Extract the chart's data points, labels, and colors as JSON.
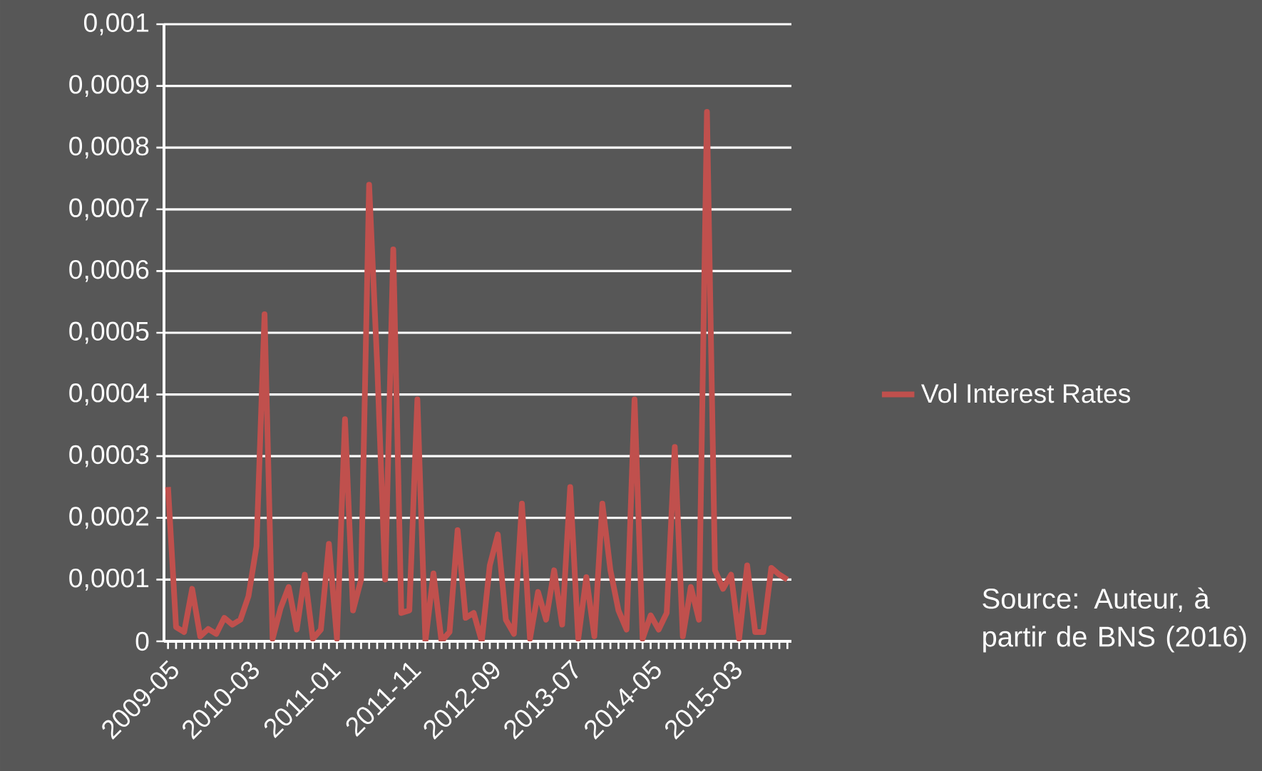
{
  "chart_data": {
    "type": "line",
    "categories": [
      "2009-05",
      null,
      null,
      null,
      null,
      null,
      null,
      null,
      null,
      null,
      "2010-03",
      null,
      null,
      null,
      null,
      null,
      null,
      null,
      null,
      null,
      "2011-01",
      null,
      null,
      null,
      null,
      null,
      null,
      null,
      null,
      null,
      "2011-11",
      null,
      null,
      null,
      null,
      null,
      null,
      null,
      null,
      null,
      "2012-09",
      null,
      null,
      null,
      null,
      null,
      null,
      null,
      null,
      null,
      "2013-07",
      null,
      null,
      null,
      null,
      null,
      null,
      null,
      null,
      null,
      "2014-05",
      null,
      null,
      null,
      null,
      null,
      null,
      null,
      null,
      null,
      "2015-03",
      null,
      null,
      null,
      null,
      null,
      null,
      null
    ],
    "series": [
      {
        "name": "Vol Interest Rates",
        "color": "#c0504d",
        "values": [
          0.00025,
          2.3e-05,
          1.5e-05,
          8.5e-05,
          8e-06,
          2e-05,
          1.2e-05,
          3.8e-05,
          2.7e-05,
          3.5e-05,
          7.3e-05,
          0.000154,
          0.00053,
          4e-06,
          5.4e-05,
          8.8e-05,
          1.9e-05,
          0.000108,
          4e-06,
          1.9e-05,
          0.000158,
          4e-06,
          0.00036,
          5e-05,
          0.0001,
          0.00074,
          0.00045,
          0.0001,
          0.000635,
          4.6e-05,
          5e-05,
          0.000392,
          0.0,
          0.00011,
          0.0,
          1.5e-05,
          0.00018,
          3.8e-05,
          4.6e-05,
          0.0,
          0.000123,
          0.000173,
          3.5e-05,
          1.2e-05,
          0.000223,
          4e-06,
          8e-05,
          3.5e-05,
          0.000115,
          2.7e-05,
          0.00025,
          4e-06,
          0.000104,
          8e-06,
          0.000223,
          0.000115,
          5e-05,
          1.9e-05,
          0.000392,
          4e-06,
          4.2e-05,
          1.9e-05,
          4.6e-05,
          0.000315,
          8e-06,
          8.8e-05,
          3.5e-05,
          0.000858,
          0.000115,
          8.5e-05,
          0.000108,
          4e-06,
          0.000123,
          1.5e-05,
          1.5e-05,
          0.000119,
          0.000108,
          0.0001
        ]
      }
    ],
    "ylim": [
      0,
      0.001
    ],
    "yticks": [
      0,
      {
        "value": 0.0001,
        "label": "0,0001"
      },
      {
        "value": 0.0002,
        "label": "0,0002"
      },
      {
        "value": 0.0003,
        "label": "0,0003"
      },
      {
        "value": 0.0004,
        "label": "0,0004"
      },
      {
        "value": 0.0005,
        "label": "0,0005"
      },
      {
        "value": 0.0006,
        "label": "0,0006"
      },
      {
        "value": 0.0007,
        "label": "0,0007"
      },
      {
        "value": 0.0008,
        "label": "0,0008"
      },
      {
        "value": 0.0009,
        "label": "0,0009"
      },
      {
        "value": 0.001,
        "label": "0,001"
      }
    ],
    "grid": "y",
    "legend": "right",
    "marker": "none",
    "line_style": "solid",
    "annotations": [
      "Source: Auteur, à partir de BNS (2016)"
    ]
  }
}
